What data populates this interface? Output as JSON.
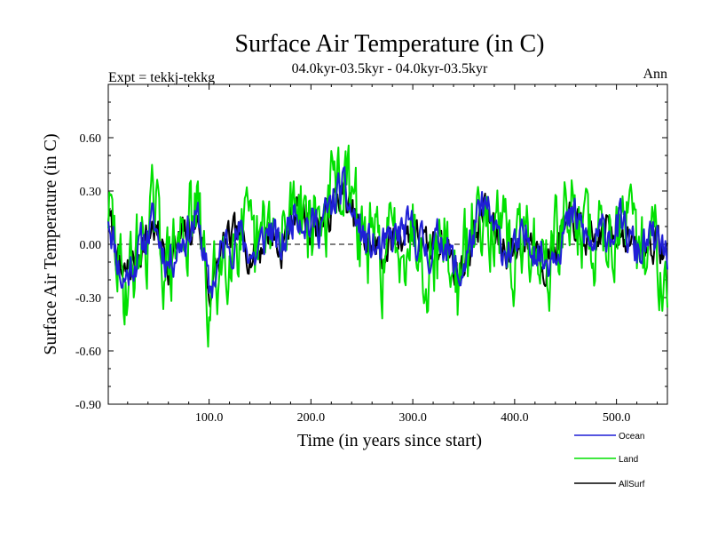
{
  "chart_data": {
    "type": "line",
    "title": "Surface Air Temperature (in C)",
    "subtitle": "04.0kyr-03.5kyr - 04.0kyr-03.5kyr",
    "expt_label": "Expt = tekkj-tekkg",
    "season_label": "Ann",
    "xlabel": "Time (in years since start)",
    "ylabel": "Surface Air Temperature (in C)",
    "xlim": [
      1,
      550
    ],
    "ylim": [
      -0.9,
      0.9
    ],
    "x_ticks": [
      100,
      200,
      300,
      400,
      500
    ],
    "x_tick_labels": [
      "100.0",
      "200.0",
      "300.0",
      "400.0",
      "500.0"
    ],
    "y_ticks": [
      -0.9,
      -0.6,
      -0.3,
      0.0,
      0.3,
      0.6
    ],
    "y_tick_labels": [
      "-0.90",
      "-0.60",
      "-0.30",
      "0.00",
      "0.30",
      "0.60"
    ],
    "zero_line": true,
    "series": [
      {
        "name": "Ocean",
        "color": "#1f1fd6",
        "anchors": [
          [
            1,
            0.18
          ],
          [
            15,
            -0.22
          ],
          [
            30,
            -0.05
          ],
          [
            45,
            0.12
          ],
          [
            60,
            -0.1
          ],
          [
            75,
            0.05
          ],
          [
            90,
            0.14
          ],
          [
            100,
            -0.28
          ],
          [
            115,
            0.0
          ],
          [
            130,
            0.05
          ],
          [
            145,
            -0.08
          ],
          [
            160,
            0.1
          ],
          [
            170,
            -0.05
          ],
          [
            185,
            0.22
          ],
          [
            200,
            0.1
          ],
          [
            215,
            0.15
          ],
          [
            230,
            0.32
          ],
          [
            240,
            0.18
          ],
          [
            255,
            0.0
          ],
          [
            270,
            -0.05
          ],
          [
            285,
            0.05
          ],
          [
            300,
            0.08
          ],
          [
            315,
            -0.05
          ],
          [
            330,
            0.05
          ],
          [
            345,
            -0.2
          ],
          [
            360,
            0.05
          ],
          [
            370,
            0.22
          ],
          [
            385,
            0.0
          ],
          [
            400,
            -0.05
          ],
          [
            415,
            0.05
          ],
          [
            430,
            -0.1
          ],
          [
            445,
            0.05
          ],
          [
            460,
            0.15
          ],
          [
            475,
            -0.02
          ],
          [
            490,
            0.08
          ],
          [
            505,
            0.1
          ],
          [
            520,
            -0.05
          ],
          [
            535,
            0.02
          ],
          [
            550,
            -0.06
          ]
        ],
        "noise": 0.1,
        "seed": 11
      },
      {
        "name": "Land",
        "color": "#00e000",
        "anchors": [
          [
            1,
            0.2
          ],
          [
            15,
            -0.25
          ],
          [
            30,
            -0.05
          ],
          [
            45,
            0.15
          ],
          [
            60,
            -0.15
          ],
          [
            75,
            0.08
          ],
          [
            90,
            0.15
          ],
          [
            100,
            -0.4
          ],
          [
            115,
            0.0
          ],
          [
            130,
            0.08
          ],
          [
            145,
            -0.1
          ],
          [
            160,
            0.12
          ],
          [
            170,
            -0.08
          ],
          [
            185,
            0.35
          ],
          [
            200,
            0.12
          ],
          [
            215,
            0.18
          ],
          [
            230,
            0.4
          ],
          [
            240,
            0.2
          ],
          [
            255,
            0.0
          ],
          [
            270,
            -0.08
          ],
          [
            285,
            0.05
          ],
          [
            300,
            0.1
          ],
          [
            315,
            -0.08
          ],
          [
            330,
            0.05
          ],
          [
            345,
            -0.25
          ],
          [
            360,
            0.08
          ],
          [
            370,
            0.3
          ],
          [
            385,
            0.0
          ],
          [
            400,
            -0.08
          ],
          [
            415,
            0.05
          ],
          [
            430,
            -0.15
          ],
          [
            445,
            0.08
          ],
          [
            460,
            0.2
          ],
          [
            475,
            -0.02
          ],
          [
            490,
            0.1
          ],
          [
            505,
            0.12
          ],
          [
            520,
            -0.08
          ],
          [
            535,
            0.02
          ],
          [
            550,
            -0.08
          ]
        ],
        "noise": 0.22,
        "seed": 29
      },
      {
        "name": "AllSurf",
        "color": "#000000",
        "anchors": [
          [
            1,
            0.17
          ],
          [
            15,
            -0.21
          ],
          [
            30,
            -0.05
          ],
          [
            45,
            0.11
          ],
          [
            60,
            -0.1
          ],
          [
            75,
            0.05
          ],
          [
            90,
            0.13
          ],
          [
            100,
            -0.28
          ],
          [
            115,
            0.0
          ],
          [
            130,
            0.05
          ],
          [
            145,
            -0.08
          ],
          [
            160,
            0.09
          ],
          [
            170,
            -0.05
          ],
          [
            185,
            0.22
          ],
          [
            200,
            0.1
          ],
          [
            215,
            0.14
          ],
          [
            230,
            0.31
          ],
          [
            240,
            0.17
          ],
          [
            255,
            0.0
          ],
          [
            270,
            -0.05
          ],
          [
            285,
            0.05
          ],
          [
            300,
            0.08
          ],
          [
            315,
            -0.05
          ],
          [
            330,
            0.05
          ],
          [
            345,
            -0.19
          ],
          [
            360,
            0.05
          ],
          [
            370,
            0.21
          ],
          [
            385,
            0.0
          ],
          [
            400,
            -0.05
          ],
          [
            415,
            0.05
          ],
          [
            430,
            -0.1
          ],
          [
            445,
            0.05
          ],
          [
            460,
            0.14
          ],
          [
            475,
            -0.02
          ],
          [
            490,
            0.08
          ],
          [
            505,
            0.09
          ],
          [
            520,
            -0.05
          ],
          [
            535,
            0.02
          ],
          [
            550,
            -0.06
          ]
        ],
        "noise": 0.09,
        "seed": 7
      }
    ],
    "draw_order": [
      "AllSurf",
      "Land",
      "Ocean"
    ],
    "legend": {
      "position": "bottom-right",
      "entries": [
        {
          "label": "Ocean",
          "color": "#1f1fd6"
        },
        {
          "label": "Land",
          "color": "#00e000"
        },
        {
          "label": "AllSurf",
          "color": "#000000"
        }
      ]
    }
  }
}
